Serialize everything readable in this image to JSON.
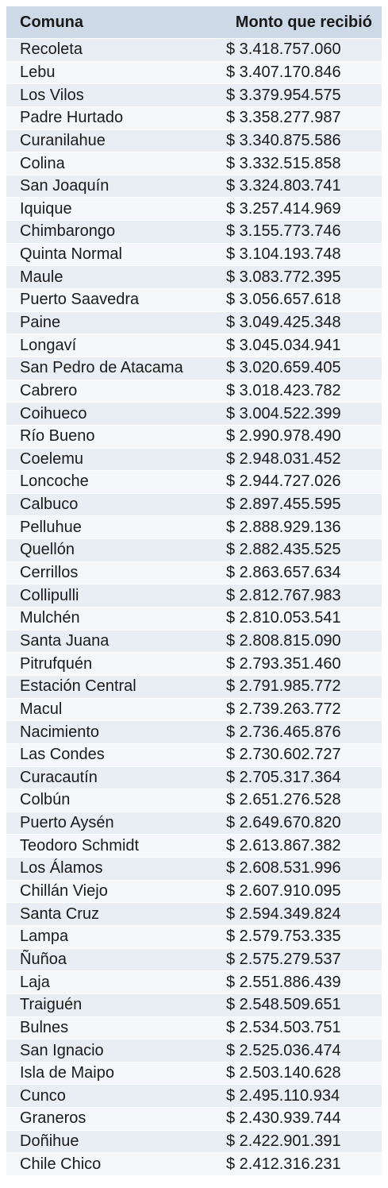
{
  "colors": {
    "header_bg": "#cdd9e6",
    "row_bg_a": "#e9eef4",
    "row_bg_b": "#f5f7fa"
  },
  "table": {
    "headers": [
      "Comuna",
      "Monto que recibió"
    ],
    "rows": [
      [
        "Recoleta",
        "$ 3.418.757.060"
      ],
      [
        "Lebu",
        "$ 3.407.170.846"
      ],
      [
        "Los Vilos",
        "$ 3.379.954.575"
      ],
      [
        "Padre Hurtado",
        "$ 3.358.277.987"
      ],
      [
        "Curanilahue",
        "$ 3.340.875.586"
      ],
      [
        "Colina",
        "$ 3.332.515.858"
      ],
      [
        "San Joaquín",
        "$ 3.324.803.741"
      ],
      [
        "Iquique",
        "$ 3.257.414.969"
      ],
      [
        "Chimbarongo",
        "$ 3.155.773.746"
      ],
      [
        "Quinta Normal",
        "$ 3.104.193.748"
      ],
      [
        "Maule",
        "$ 3.083.772.395"
      ],
      [
        "Puerto Saavedra",
        "$ 3.056.657.618"
      ],
      [
        "Paine",
        "$ 3.049.425.348"
      ],
      [
        "Longaví",
        "$ 3.045.034.941"
      ],
      [
        "San Pedro de Atacama",
        "$ 3.020.659.405"
      ],
      [
        "Cabrero",
        "$ 3.018.423.782"
      ],
      [
        "Coihueco",
        "$ 3.004.522.399"
      ],
      [
        "Río Bueno",
        "$ 2.990.978.490"
      ],
      [
        "Coelemu",
        "$ 2.948.031.452"
      ],
      [
        "Loncoche",
        "$ 2.944.727.026"
      ],
      [
        "Calbuco",
        "$ 2.897.455.595"
      ],
      [
        "Pelluhue",
        "$ 2.888.929.136"
      ],
      [
        "Quellón",
        "$ 2.882.435.525"
      ],
      [
        "Cerrillos",
        "$ 2.863.657.634"
      ],
      [
        "Collipulli",
        "$ 2.812.767.983"
      ],
      [
        "Mulchén",
        "$ 2.810.053.541"
      ],
      [
        "Santa Juana",
        "$ 2.808.815.090"
      ],
      [
        "Pitrufquén",
        "$ 2.793.351.460"
      ],
      [
        "Estación Central",
        "$ 2.791.985.772"
      ],
      [
        "Macul",
        "$ 2.739.263.772"
      ],
      [
        "Nacimiento",
        "$ 2.736.465.876"
      ],
      [
        "Las Condes",
        "$ 2.730.602.727"
      ],
      [
        "Curacautín",
        "$ 2.705.317.364"
      ],
      [
        "Colbún",
        "$ 2.651.276.528"
      ],
      [
        "Puerto Aysén",
        "$ 2.649.670.820"
      ],
      [
        "Teodoro Schmidt",
        "$ 2.613.867.382"
      ],
      [
        "Los Álamos",
        "$ 2.608.531.996"
      ],
      [
        "Chillán Viejo",
        "$ 2.607.910.095"
      ],
      [
        "Santa Cruz",
        "$ 2.594.349.824"
      ],
      [
        "Lampa",
        "$ 2.579.753.335"
      ],
      [
        "Ñuñoa",
        "$ 2.575.279.537"
      ],
      [
        "Laja",
        "$ 2.551.886.439"
      ],
      [
        "Traiguén",
        "$ 2.548.509.651"
      ],
      [
        "Bulnes",
        "$ 2.534.503.751"
      ],
      [
        "San Ignacio",
        "$ 2.525.036.474"
      ],
      [
        "Isla de Maipo",
        "$ 2.503.140.628"
      ],
      [
        "Cunco",
        "$ 2.495.110.934"
      ],
      [
        "Graneros",
        "$ 2.430.939.744"
      ],
      [
        "Doñihue",
        "$ 2.422.901.391"
      ],
      [
        "Chile Chico",
        "$ 2.412.316.231"
      ]
    ]
  }
}
